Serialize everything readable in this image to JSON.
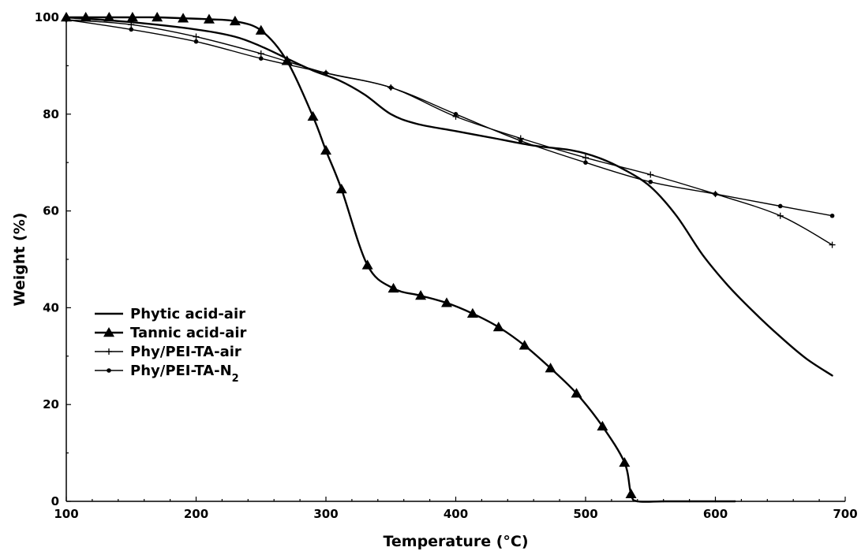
{
  "chart_data": {
    "type": "line",
    "title": "",
    "xlabel": "Temperature (°C)",
    "ylabel": "Weight (%)",
    "xlim": [
      100,
      700
    ],
    "ylim": [
      0,
      100
    ],
    "xticks": [
      "100",
      "200",
      "300",
      "400",
      "500",
      "600",
      "700"
    ],
    "yticks": [
      "0",
      "20",
      "40",
      "60",
      "80",
      "100"
    ],
    "grid": false,
    "legend_position": "center-left",
    "series": [
      {
        "name": "Phytic acid-air",
        "marker": "none",
        "x": [
          100,
          150,
          200,
          230,
          250,
          270,
          290,
          310,
          330,
          350,
          370,
          400,
          430,
          460,
          490,
          510,
          530,
          550,
          570,
          590,
          610,
          630,
          650,
          670,
          690
        ],
        "y": [
          100,
          99,
          97.5,
          96,
          94,
          91.5,
          89,
          87,
          84,
          80,
          78,
          76.5,
          75,
          73.5,
          72.5,
          71,
          68.5,
          65,
          59,
          51,
          44.5,
          39,
          34,
          29.5,
          26
        ]
      },
      {
        "name": "Tannic acid-air",
        "marker": "triangle",
        "x": [
          100,
          115,
          133,
          151,
          170,
          190,
          210,
          230,
          250,
          270,
          290,
          300,
          312,
          332,
          352,
          373,
          393,
          413,
          433,
          453,
          473,
          493,
          513,
          530,
          535,
          540,
          560,
          580,
          600,
          615
        ],
        "y": [
          100,
          100,
          100,
          100,
          100,
          99.8,
          99.6,
          99.2,
          97.3,
          91,
          79.5,
          72.5,
          64.5,
          48.8,
          44,
          42.5,
          41,
          38.8,
          36,
          32.2,
          27.5,
          22.3,
          15.5,
          8,
          1.5,
          0,
          0,
          0,
          0,
          0
        ]
      },
      {
        "name": "Phy/PEI-TA-air",
        "marker": "plus",
        "x": [
          100,
          150,
          200,
          250,
          300,
          350,
          400,
          450,
          500,
          550,
          600,
          650,
          690
        ],
        "y": [
          99.5,
          98.5,
          96,
          92.5,
          88.5,
          85.5,
          79.5,
          75,
          71,
          67.5,
          63.5,
          59,
          53
        ]
      },
      {
        "name": "Phy/PEI-TA-N₂",
        "marker": "dot",
        "x": [
          100,
          150,
          200,
          250,
          300,
          350,
          400,
          450,
          500,
          550,
          600,
          650,
          690
        ],
        "y": [
          99.5,
          97.5,
          95,
          91.5,
          88.5,
          85.5,
          80,
          74.5,
          70,
          66,
          63.5,
          61,
          59
        ]
      }
    ]
  }
}
